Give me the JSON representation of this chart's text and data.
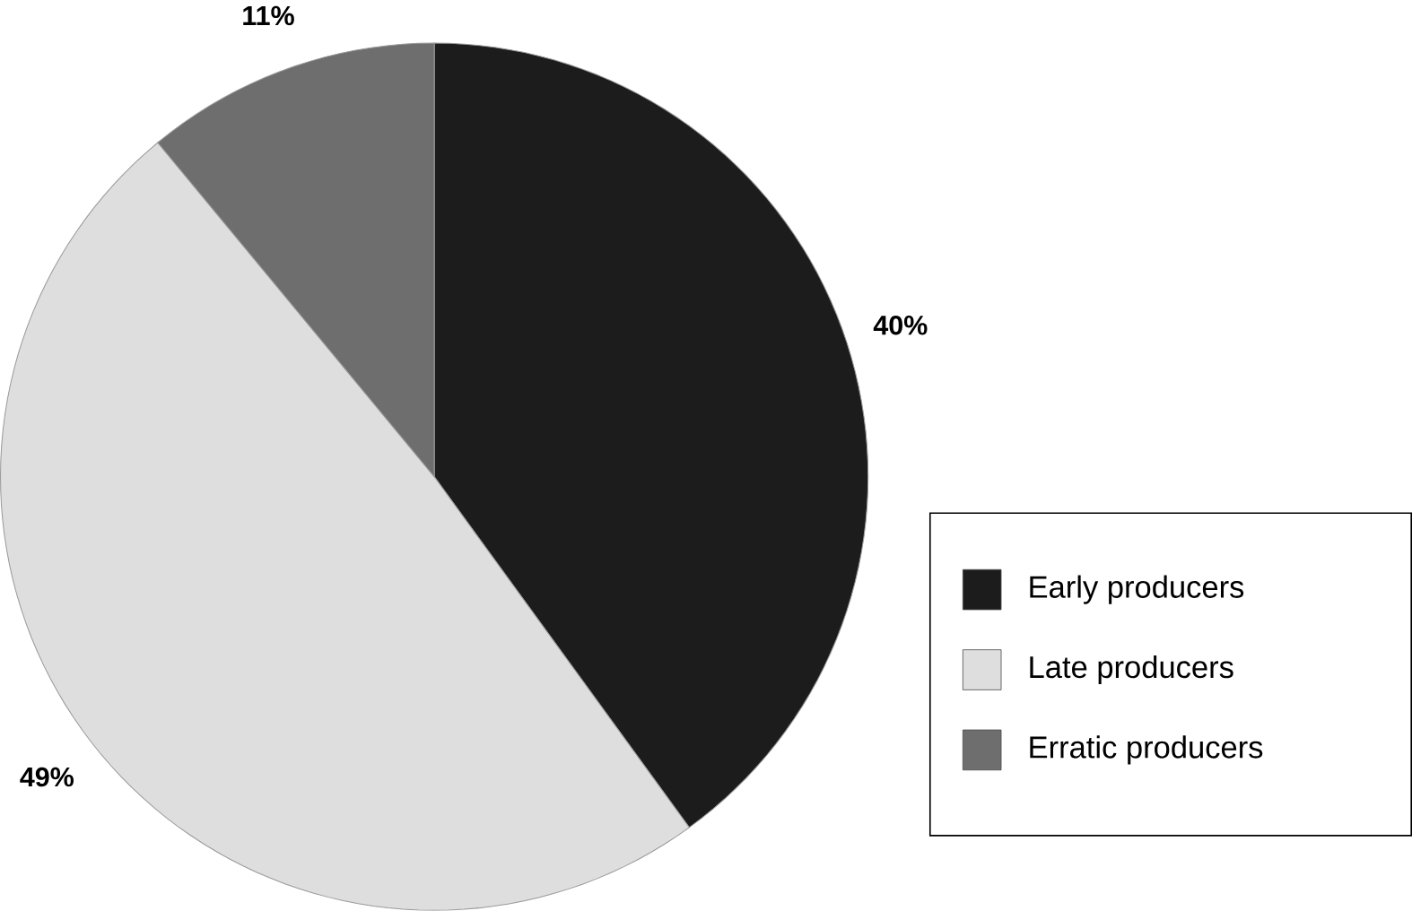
{
  "chart_data": {
    "type": "pie",
    "categories": [
      "Early producers",
      "Late producers",
      "Erratic producers"
    ],
    "values": [
      40,
      49,
      11
    ],
    "colors": [
      "#1c1c1c",
      "#dedede",
      "#6e6e6e"
    ],
    "value_labels": [
      "40%",
      "49%",
      "11%"
    ],
    "legend": "right"
  }
}
